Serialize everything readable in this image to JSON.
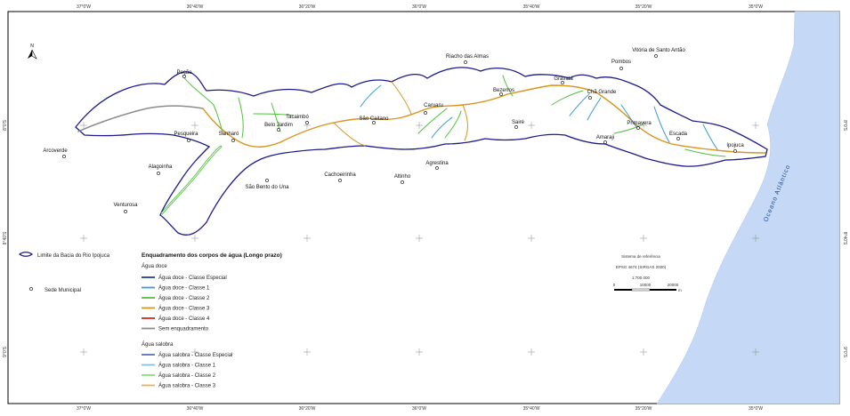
{
  "map": {
    "grid_top": [
      "37°0'W",
      "36°40'W",
      "36°20'W",
      "36°0'W",
      "35°40'W",
      "35°20'W",
      "35°0'W"
    ],
    "grid_bottom": [
      "37°0'W",
      "36°40'W",
      "36°20'W",
      "36°0'W",
      "35°40'W",
      "35°20'W",
      "35°0'W"
    ],
    "grid_left": [
      "8°0'S",
      "8°40'S",
      "9°0'S"
    ],
    "grid_right": [
      "8°0'S",
      "8°40'S",
      "9°0'S"
    ],
    "north_arrow": "N",
    "ocean_label": "Oceano Atlântico",
    "towns": [
      {
        "name": "Poção"
      },
      {
        "name": "Pesqueira"
      },
      {
        "name": "Arcoverde"
      },
      {
        "name": "Alagoinha"
      },
      {
        "name": "Venturosa"
      },
      {
        "name": "Sanharó"
      },
      {
        "name": "Belo Jardim"
      },
      {
        "name": "Tacaimbó"
      },
      {
        "name": "São Bento do Una"
      },
      {
        "name": "Cachoeirinha"
      },
      {
        "name": "São Caitano"
      },
      {
        "name": "Altinho"
      },
      {
        "name": "Caruaru"
      },
      {
        "name": "Agrestina"
      },
      {
        "name": "Riacho das Almas"
      },
      {
        "name": "Bezerros"
      },
      {
        "name": "Sairé"
      },
      {
        "name": "Gravatá"
      },
      {
        "name": "Pombos"
      },
      {
        "name": "Vitória de Santo Antão"
      },
      {
        "name": "Chã Grande"
      },
      {
        "name": "Primavera"
      },
      {
        "name": "Amaraji"
      },
      {
        "name": "Escada"
      },
      {
        "name": "Ipojuca"
      }
    ]
  },
  "legend": {
    "basin_label": "Limite da Bacia do Rio Ipojuca",
    "seat_label": "Sede Municipal",
    "title": "Enquadramento dos corpos de água (Longo prazo)",
    "fresh_header": "Água doce",
    "fresh_items": [
      {
        "label": "Água doce - Classe Especial",
        "color": "#1f3f99"
      },
      {
        "label": "Água doce - Classe 1",
        "color": "#3a9bd4"
      },
      {
        "label": "Água doce - Classe 2",
        "color": "#4ec23a"
      },
      {
        "label": "Água doce - Classe 3",
        "color": "#d8941e"
      },
      {
        "label": "Água doce - Classe 4",
        "color": "#e0231f"
      },
      {
        "label": "Sem enquadramento",
        "color": "#8c8c8c"
      }
    ],
    "brackish_header": "Água salobra",
    "brackish_items": [
      {
        "label": "Água salobra - Classe Especial",
        "color": "#5a6fbf"
      },
      {
        "label": "Água salobra - Classe 1",
        "color": "#7ec3e6"
      },
      {
        "label": "Água salobra - Classe 2",
        "color": "#8be07a"
      },
      {
        "label": "Água salobra - Classe 3",
        "color": "#e8b35a"
      }
    ]
  },
  "reference": {
    "system": "Sistema de referência",
    "datum": "EPSG 4674 (SIRGAS 2000)",
    "scale_ratio": "1:700.000",
    "scale_labels": [
      "0",
      "10000",
      "20000"
    ],
    "scale_unit": "m"
  },
  "colors": {
    "basin_outline": "#1a1a8c",
    "ocean": "#c5d8f5"
  }
}
